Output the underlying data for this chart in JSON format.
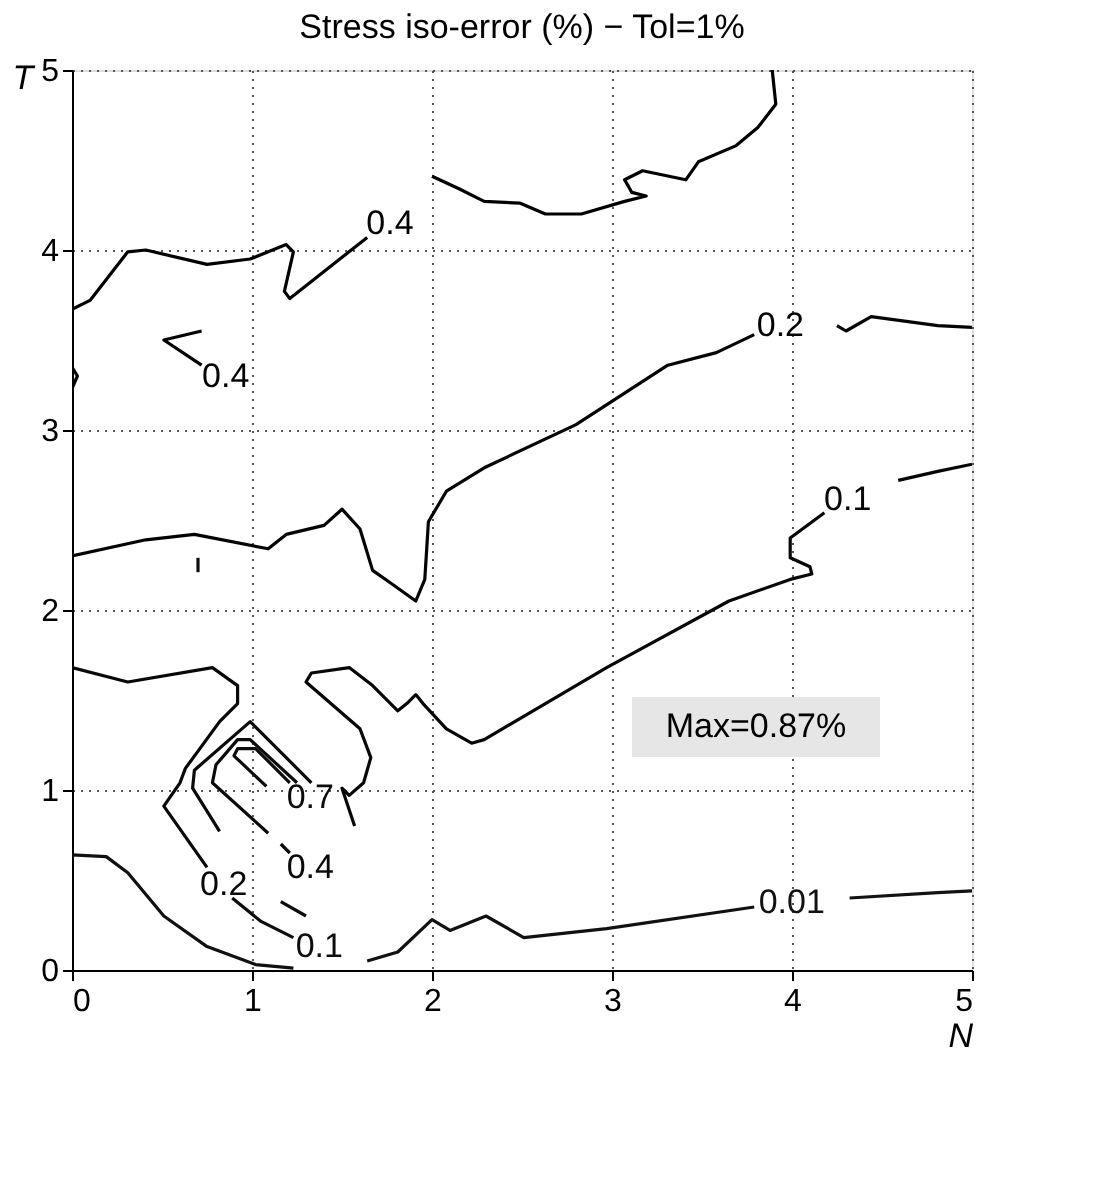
{
  "chart_data": {
    "type": "line",
    "title": "Stress iso-error (%) − Tol=1%",
    "xlabel": "N",
    "ylabel": "T",
    "xlim": [
      0,
      5
    ],
    "ylim": [
      0,
      5
    ],
    "xticks": [
      0,
      1,
      2,
      3,
      4,
      5
    ],
    "yticks": [
      0,
      1,
      2,
      3,
      4,
      5
    ],
    "grid": true,
    "legend": false,
    "marker": "none",
    "line_style": "solid",
    "series": [
      {
        "color": "#000000",
        "x": [
          2.0,
          2.15,
          2.29,
          2.49,
          2.63,
          2.83,
          3.07,
          3.19,
          3.11,
          3.07,
          3.17,
          3.41,
          3.48,
          3.69,
          3.81,
          3.91,
          3.89
        ],
        "values": [
          4.41,
          4.34,
          4.27,
          4.26,
          4.2,
          4.2,
          4.27,
          4.3,
          4.32,
          4.39,
          4.44,
          4.39,
          4.49,
          4.58,
          4.68,
          4.81,
          5.0
        ]
      },
      {
        "name": "0.4",
        "color": "#010101",
        "x": [
          0,
          0.1,
          0.31,
          0.41,
          0.75,
          0.99,
          1.19,
          1.23,
          1.18,
          1.21,
          1.64
        ],
        "values": [
          3.67,
          3.72,
          3.99,
          4.0,
          3.92,
          3.95,
          4.03,
          3.99,
          3.77,
          3.73,
          4.07
        ]
      },
      {
        "name": "0.4",
        "color": "#020202",
        "x": [
          0.72,
          0.51,
          0.72
        ],
        "values": [
          3.55,
          3.5,
          3.36
        ]
      },
      {
        "color": "#030303",
        "x": [
          0,
          0.03,
          0
        ],
        "values": [
          3.35,
          3.3,
          3.23
        ]
      },
      {
        "name": "0.2",
        "color": "#040404",
        "x": [
          0,
          0.41,
          0.68,
          1.09,
          1.19,
          1.4,
          1.5,
          1.6,
          1.67,
          1.77,
          1.91,
          1.96,
          1.98,
          2.08,
          2.29,
          2.8,
          3.31,
          3.58,
          3.79
        ],
        "values": [
          2.3,
          2.39,
          2.42,
          2.34,
          2.42,
          2.47,
          2.56,
          2.45,
          2.22,
          2.15,
          2.05,
          2.17,
          2.49,
          2.66,
          2.79,
          3.03,
          3.36,
          3.43,
          3.53
        ]
      },
      {
        "color": "#050505",
        "x": [
          4.25,
          4.3,
          4.44,
          4.81,
          5.0
        ],
        "values": [
          3.58,
          3.55,
          3.63,
          3.58,
          3.57
        ]
      },
      {
        "color": "#060606",
        "x": [
          4.59,
          4.81,
          5.0
        ],
        "values": [
          2.72,
          2.77,
          2.81
        ]
      },
      {
        "name": "0.1",
        "color": "#070707",
        "x": [
          1.57,
          1.5,
          1.54,
          1.62,
          1.66,
          1.6,
          1.3,
          1.33,
          1.54,
          1.67,
          1.81,
          1.86,
          1.91,
          1.95,
          2.08,
          2.22,
          2.29,
          2.97,
          3.65,
          3.99,
          4.11,
          4.1,
          3.99,
          3.99,
          4.18
        ],
        "values": [
          0.8,
          1.01,
          0.97,
          1.04,
          1.18,
          1.34,
          1.6,
          1.65,
          1.68,
          1.58,
          1.44,
          1.48,
          1.53,
          1.48,
          1.34,
          1.26,
          1.28,
          1.68,
          2.05,
          2.17,
          2.2,
          2.24,
          2.29,
          2.4,
          2.54
        ]
      },
      {
        "name": "0.2",
        "color": "#080808",
        "x": [
          0,
          0.31,
          0.78,
          0.92,
          0.92,
          0.82,
          0.63,
          0.6,
          0.51,
          0.75
        ],
        "values": [
          1.68,
          1.6,
          1.68,
          1.58,
          1.48,
          1.38,
          1.12,
          1.04,
          0.91,
          0.57
        ]
      },
      {
        "name": "0.4",
        "color": "#090909",
        "x": [
          1.16,
          1.21
        ],
        "values": [
          0.7,
          0.65
        ]
      },
      {
        "color": "#0a0a0a",
        "x": [
          0.82,
          0.67,
          0.68,
          0.99,
          1.09,
          1.33
        ],
        "values": [
          0.77,
          1.01,
          1.11,
          1.38,
          1.28,
          1.04
        ]
      },
      {
        "color": "#0b0b0b",
        "x": [
          1.09,
          0.78,
          0.8,
          0.92,
          0.99,
          1.25
        ],
        "values": [
          0.76,
          1.04,
          1.14,
          1.28,
          1.28,
          1.04
        ]
      },
      {
        "name": "0.7",
        "color": "#0c0c0c",
        "x": [
          1.08,
          0.9,
          0.92,
          1.02,
          1.21
        ],
        "values": [
          1.02,
          1.19,
          1.23,
          1.23,
          1.04
        ]
      },
      {
        "name": "0.1",
        "color": "#0d0d0d",
        "x": [
          0.89,
          1.05,
          1.23
        ],
        "values": [
          0.4,
          0.27,
          0.18
        ]
      },
      {
        "color": "#0e0e0e",
        "x": [
          1.16,
          1.3
        ],
        "values": [
          0.38,
          0.3
        ]
      },
      {
        "color": "#0f0f0f",
        "x": [
          0.7,
          0.7
        ],
        "values": [
          2.21,
          2.29
        ]
      },
      {
        "color": "#101010",
        "x": [
          0,
          0.19,
          0.31,
          0.51,
          0.75,
          1.02,
          1.23
        ],
        "values": [
          0.64,
          0.63,
          0.54,
          0.3,
          0.13,
          0.03,
          0.01
        ]
      },
      {
        "name": "0.01",
        "color": "#111111",
        "x": [
          1.64,
          1.81,
          2.0,
          2.1,
          2.3,
          2.51,
          2.97,
          3.79
        ],
        "values": [
          0.05,
          0.1,
          0.28,
          0.22,
          0.3,
          0.18,
          0.23,
          0.35
        ]
      },
      {
        "color": "#121212",
        "x": [
          4.32,
          4.81,
          5.0
        ],
        "values": [
          0.4,
          0.43,
          0.44
        ]
      }
    ],
    "annotations": [
      "Max=0.87%"
    ]
  }
}
